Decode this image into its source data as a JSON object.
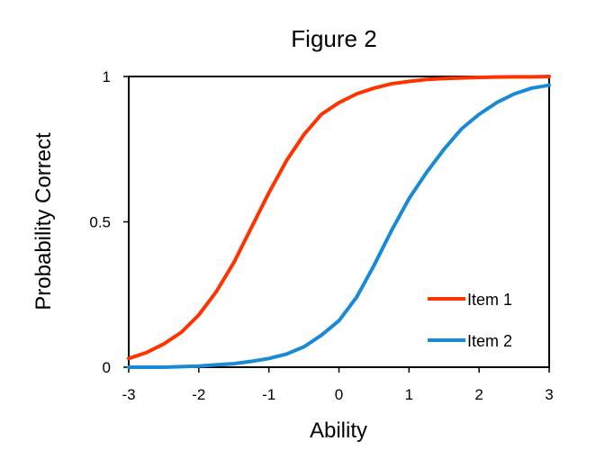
{
  "chart_data": {
    "type": "line",
    "title": "Figure 2",
    "xlabel": "Ability",
    "ylabel": "Probability Correct",
    "xlim": [
      -3,
      3
    ],
    "ylim": [
      0,
      1
    ],
    "xticks": [
      "-3",
      "-2",
      "-1",
      "0",
      "1",
      "2",
      "3"
    ],
    "yticks": [
      "0",
      "0.5",
      "1"
    ],
    "grid": false,
    "legend_position": "bottom-right",
    "x": [
      -3,
      -2.75,
      -2.5,
      -2.25,
      -2,
      -1.75,
      -1.5,
      -1.25,
      -1,
      -0.75,
      -0.5,
      -0.25,
      0,
      0.25,
      0.5,
      0.75,
      1,
      1.25,
      1.5,
      1.75,
      2,
      2.25,
      2.5,
      2.75,
      3
    ],
    "series": [
      {
        "name": "Item 1",
        "color": "#ff3300",
        "values": [
          0.03,
          0.05,
          0.08,
          0.12,
          0.18,
          0.26,
          0.36,
          0.48,
          0.6,
          0.71,
          0.8,
          0.87,
          0.91,
          0.94,
          0.96,
          0.975,
          0.983,
          0.99,
          0.993,
          0.995,
          0.997,
          0.998,
          0.999,
          0.999,
          1.0
        ]
      },
      {
        "name": "Item 2",
        "color": "#1a8ad4",
        "values": [
          0.0,
          0.0,
          0.0,
          0.002,
          0.004,
          0.008,
          0.012,
          0.02,
          0.03,
          0.045,
          0.07,
          0.11,
          0.16,
          0.24,
          0.35,
          0.47,
          0.58,
          0.67,
          0.75,
          0.82,
          0.87,
          0.91,
          0.94,
          0.96,
          0.97
        ]
      }
    ]
  }
}
